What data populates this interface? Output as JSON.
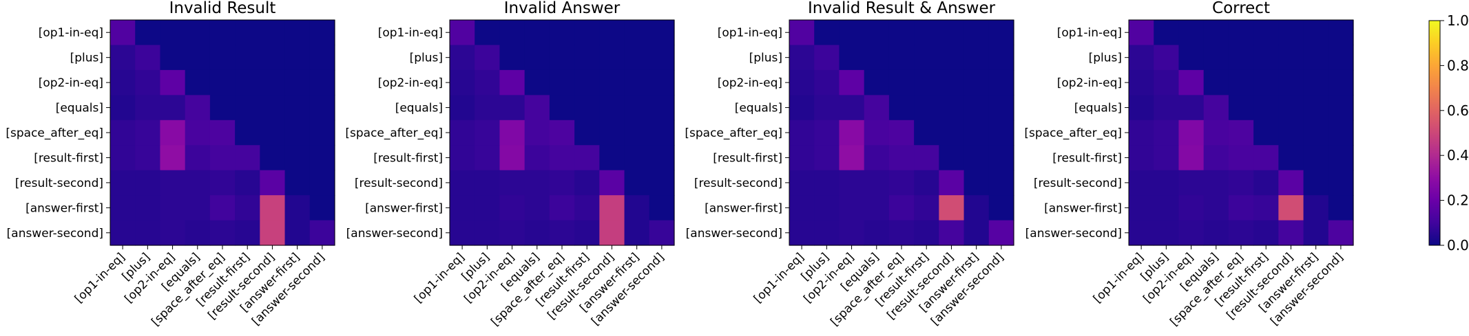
{
  "chart_data": [
    {
      "type": "heatmap",
      "title": "Invalid Result",
      "tokens": [
        "[op1-in-eq]",
        "[plus]",
        "[op2-in-eq]",
        "[equals]",
        "[space_after_eq]",
        "[result-first]",
        "[result-second]",
        "[answer-first]",
        "[answer-second]"
      ],
      "matrix": [
        [
          0.14,
          0,
          0,
          0,
          0,
          0,
          0,
          0,
          0
        ],
        [
          0.06,
          0.09,
          0,
          0,
          0,
          0,
          0,
          0,
          0
        ],
        [
          0.05,
          0.07,
          0.17,
          0,
          0,
          0,
          0,
          0,
          0
        ],
        [
          0.04,
          0.06,
          0.06,
          0.11,
          0,
          0,
          0,
          0,
          0
        ],
        [
          0.07,
          0.08,
          0.28,
          0.12,
          0.13,
          0,
          0,
          0,
          0
        ],
        [
          0.07,
          0.08,
          0.3,
          0.09,
          0.11,
          0.11,
          0,
          0,
          0
        ],
        [
          0.05,
          0.05,
          0.06,
          0.06,
          0.07,
          0.05,
          0.16,
          0,
          0
        ],
        [
          0.05,
          0.05,
          0.06,
          0.06,
          0.1,
          0.07,
          0.48,
          0.04,
          0
        ],
        [
          0.05,
          0.05,
          0.06,
          0.05,
          0.06,
          0.05,
          0.48,
          0.04,
          0.09
        ]
      ]
    },
    {
      "type": "heatmap",
      "title": "Invalid Answer",
      "tokens": [
        "[op1-in-eq]",
        "[plus]",
        "[op2-in-eq]",
        "[equals]",
        "[space_after_eq]",
        "[result-first]",
        "[result-second]",
        "[answer-first]",
        "[answer-second]"
      ],
      "matrix": [
        [
          0.14,
          0,
          0,
          0,
          0,
          0,
          0,
          0,
          0
        ],
        [
          0.06,
          0.09,
          0,
          0,
          0,
          0,
          0,
          0,
          0
        ],
        [
          0.05,
          0.07,
          0.17,
          0,
          0,
          0,
          0,
          0,
          0
        ],
        [
          0.04,
          0.06,
          0.06,
          0.11,
          0,
          0,
          0,
          0,
          0
        ],
        [
          0.07,
          0.08,
          0.26,
          0.11,
          0.13,
          0,
          0,
          0,
          0
        ],
        [
          0.07,
          0.08,
          0.27,
          0.09,
          0.11,
          0.11,
          0,
          0,
          0
        ],
        [
          0.05,
          0.05,
          0.06,
          0.06,
          0.07,
          0.05,
          0.16,
          0,
          0
        ],
        [
          0.05,
          0.05,
          0.07,
          0.06,
          0.09,
          0.07,
          0.47,
          0.04,
          0
        ],
        [
          0.05,
          0.05,
          0.06,
          0.05,
          0.06,
          0.05,
          0.47,
          0.04,
          0.08
        ]
      ]
    },
    {
      "type": "heatmap",
      "title": "Invalid Result & Answer",
      "tokens": [
        "[op1-in-eq]",
        "[plus]",
        "[op2-in-eq]",
        "[equals]",
        "[space_after_eq]",
        "[result-first]",
        "[result-second]",
        "[answer-first]",
        "[answer-second]"
      ],
      "matrix": [
        [
          0.14,
          0,
          0,
          0,
          0,
          0,
          0,
          0,
          0
        ],
        [
          0.06,
          0.09,
          0,
          0,
          0,
          0,
          0,
          0,
          0
        ],
        [
          0.05,
          0.07,
          0.17,
          0,
          0,
          0,
          0,
          0,
          0
        ],
        [
          0.04,
          0.06,
          0.06,
          0.11,
          0,
          0,
          0,
          0,
          0
        ],
        [
          0.07,
          0.08,
          0.28,
          0.12,
          0.13,
          0,
          0,
          0,
          0
        ],
        [
          0.07,
          0.08,
          0.3,
          0.09,
          0.11,
          0.11,
          0,
          0,
          0
        ],
        [
          0.05,
          0.05,
          0.06,
          0.06,
          0.07,
          0.05,
          0.16,
          0,
          0
        ],
        [
          0.05,
          0.05,
          0.06,
          0.06,
          0.09,
          0.07,
          0.52,
          0.04,
          0
        ],
        [
          0.05,
          0.05,
          0.06,
          0.05,
          0.06,
          0.05,
          0.11,
          0.04,
          0.15
        ]
      ]
    },
    {
      "type": "heatmap",
      "title": "Correct",
      "tokens": [
        "[op1-in-eq]",
        "[plus]",
        "[op2-in-eq]",
        "[equals]",
        "[space_after_eq]",
        "[result-first]",
        "[result-second]",
        "[answer-first]",
        "[answer-second]"
      ],
      "matrix": [
        [
          0.14,
          0,
          0,
          0,
          0,
          0,
          0,
          0,
          0
        ],
        [
          0.06,
          0.09,
          0,
          0,
          0,
          0,
          0,
          0,
          0
        ],
        [
          0.05,
          0.07,
          0.17,
          0,
          0,
          0,
          0,
          0,
          0
        ],
        [
          0.04,
          0.06,
          0.06,
          0.11,
          0,
          0,
          0,
          0,
          0
        ],
        [
          0.07,
          0.08,
          0.26,
          0.12,
          0.13,
          0,
          0,
          0,
          0
        ],
        [
          0.07,
          0.08,
          0.27,
          0.1,
          0.12,
          0.12,
          0,
          0,
          0
        ],
        [
          0.05,
          0.05,
          0.06,
          0.06,
          0.07,
          0.05,
          0.16,
          0,
          0
        ],
        [
          0.05,
          0.05,
          0.07,
          0.06,
          0.09,
          0.08,
          0.52,
          0.04,
          0
        ],
        [
          0.05,
          0.05,
          0.06,
          0.05,
          0.06,
          0.05,
          0.11,
          0.04,
          0.13
        ]
      ]
    }
  ],
  "colorbar": {
    "colormap": "plasma",
    "range": [
      0,
      1
    ],
    "ticks": [
      "0.0",
      "0.2",
      "0.4",
      "0.6",
      "0.8",
      "1.0"
    ]
  }
}
